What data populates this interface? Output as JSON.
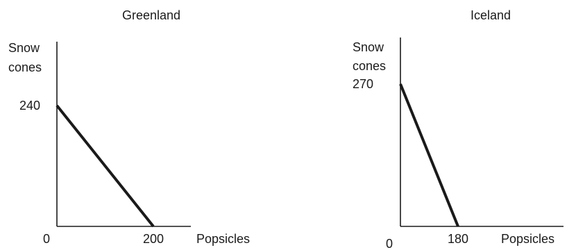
{
  "colors": {
    "axis": "#1a1a1a",
    "line": "#1a1a1a",
    "text": "#1a1a1a",
    "background": "#ffffff"
  },
  "chart_data": [
    {
      "type": "line",
      "title": "Greenland",
      "xlabel": "Popsicles",
      "ylabel": [
        "Snow",
        "cones"
      ],
      "series": [
        {
          "x": [
            0,
            200
          ],
          "y": [
            240,
            0
          ]
        }
      ],
      "x_ticks": [
        {
          "value": 200,
          "label": "200"
        }
      ],
      "y_ticks": [
        {
          "value": 240,
          "label": "240"
        }
      ],
      "origin_label": "0",
      "grid": false
    },
    {
      "type": "line",
      "title": "Iceland",
      "xlabel": "Popsicles",
      "ylabel": [
        "Snow",
        "cones"
      ],
      "series": [
        {
          "x": [
            0,
            180
          ],
          "y": [
            270,
            0
          ]
        }
      ],
      "x_ticks": [
        {
          "value": 180,
          "label": "180"
        }
      ],
      "y_ticks": [
        {
          "value": 270,
          "label": "270"
        }
      ],
      "origin_label": "0",
      "grid": false
    }
  ]
}
